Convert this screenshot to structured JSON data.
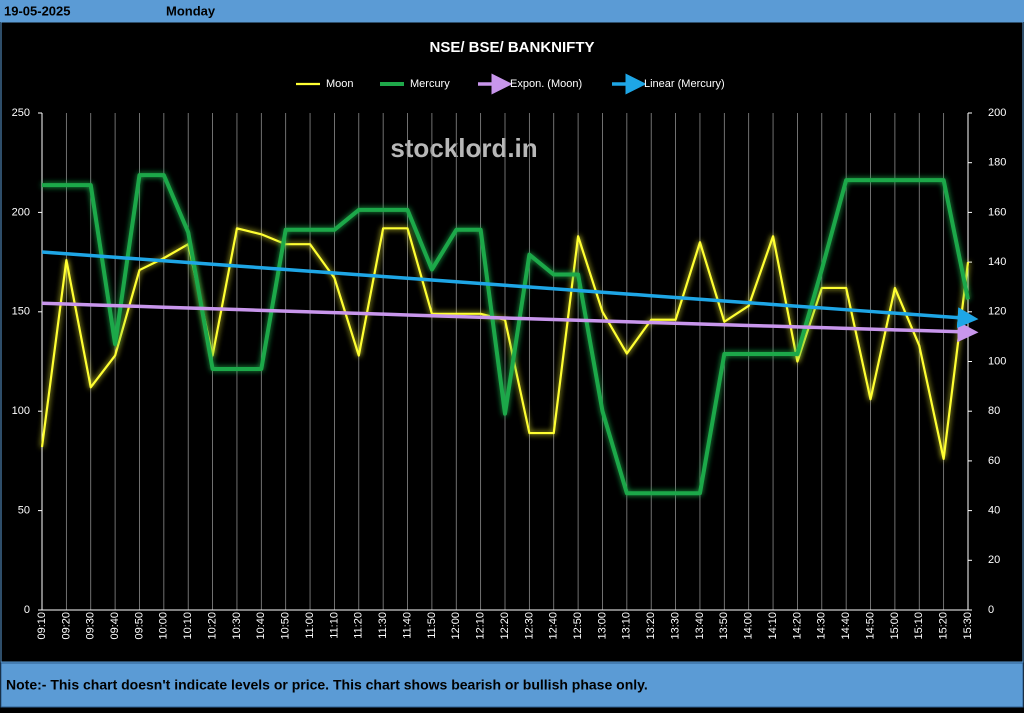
{
  "header": {
    "date": "19-05-2025",
    "day": "Monday"
  },
  "note": "Note:- This chart doesn't indicate levels or price. This chart shows bearish or bullish phase only.",
  "chart_data": {
    "type": "line",
    "title": "NSE/ BSE/ BANKNIFTY",
    "watermark": "stocklord.in",
    "categories": [
      "09:10",
      "09:20",
      "09:30",
      "09:40",
      "09:50",
      "10:00",
      "10:10",
      "10:20",
      "10:30",
      "10:40",
      "10:50",
      "11:00",
      "11:10",
      "11:20",
      "11:30",
      "11:40",
      "11:50",
      "12:00",
      "12:10",
      "12:20",
      "12:30",
      "12:40",
      "12:50",
      "13:00",
      "13:10",
      "13:20",
      "13:30",
      "13:40",
      "13:50",
      "14:00",
      "14:10",
      "14:20",
      "14:30",
      "14:40",
      "14:50",
      "15:00",
      "15:10",
      "15:20",
      "15:30"
    ],
    "series": [
      {
        "name": "Moon",
        "color": "#ffff33",
        "axis": "y",
        "values": [
          82,
          176,
          112,
          128,
          171,
          177,
          184,
          128,
          192,
          189,
          184,
          184,
          167,
          128,
          192,
          192,
          149,
          149,
          149,
          146,
          89,
          89,
          188,
          150,
          129,
          146,
          146,
          185,
          145,
          153,
          188,
          125,
          162,
          162,
          106,
          162,
          133,
          76,
          175
        ]
      },
      {
        "name": "Mercury",
        "color": "#1fa84a",
        "axis": "y2",
        "values": [
          171,
          171,
          171,
          107,
          175,
          175,
          152,
          97,
          97,
          97,
          153,
          153,
          153,
          161,
          161,
          161,
          137,
          153,
          153,
          79,
          143,
          135,
          135,
          80,
          47,
          47,
          47,
          47,
          103,
          103,
          103,
          103,
          137,
          173,
          173,
          173,
          173,
          173,
          125
        ]
      }
    ],
    "trendlines": [
      {
        "name": "Expon. (Moon)",
        "color": "#c896ec",
        "kind": "exponential",
        "series": 0
      },
      {
        "name": "Linear (Mercury)",
        "color": "#1ea6e6",
        "kind": "linear",
        "series": 1
      }
    ],
    "ylim": [
      0,
      250
    ],
    "yticks": [
      0,
      50,
      100,
      150,
      200,
      250
    ],
    "y2lim": [
      0,
      200
    ],
    "y2ticks": [
      0,
      20,
      40,
      60,
      80,
      100,
      120,
      140,
      160,
      180,
      200
    ],
    "grid": "vertical"
  }
}
